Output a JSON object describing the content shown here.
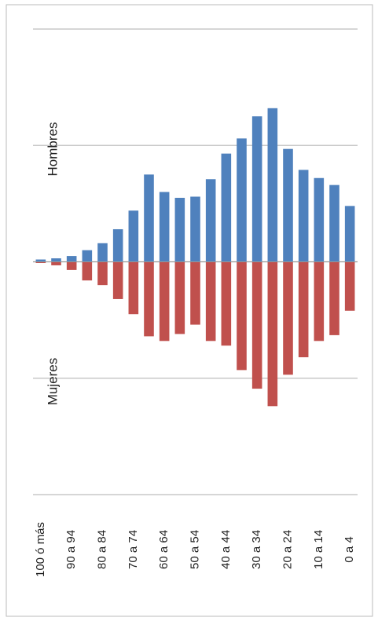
{
  "chart_data": {
    "type": "bar",
    "categories": [
      "100 ó más",
      null,
      "90 a 94",
      null,
      "80 a 84",
      null,
      "70 a 74",
      null,
      "60 a 64",
      null,
      "50 a 54",
      null,
      "40 a 44",
      null,
      "30 a 34",
      null,
      "20 a 24",
      null,
      "10 a 14",
      null,
      "0 a 4"
    ],
    "series": [
      {
        "name": "Hombres",
        "color": "#4f81bd",
        "values": [
          0.02,
          0.03,
          0.05,
          0.1,
          0.16,
          0.28,
          0.44,
          0.75,
          0.6,
          0.55,
          0.56,
          0.71,
          0.93,
          1.06,
          1.25,
          1.32,
          0.97,
          0.79,
          0.72,
          0.66,
          0.48
        ]
      },
      {
        "name": "Mujeres",
        "color": "#c0504d",
        "values": [
          -0.01,
          -0.03,
          -0.07,
          -0.16,
          -0.2,
          -0.32,
          -0.45,
          -0.64,
          -0.68,
          -0.62,
          -0.54,
          -0.68,
          -0.72,
          -0.93,
          -1.09,
          -1.24,
          -0.97,
          -0.82,
          -0.68,
          -0.63,
          -0.42
        ]
      }
    ],
    "ylim": [
      -2,
      2
    ],
    "yticks": [
      -2,
      -1,
      0,
      1,
      2
    ],
    "grid": true
  }
}
